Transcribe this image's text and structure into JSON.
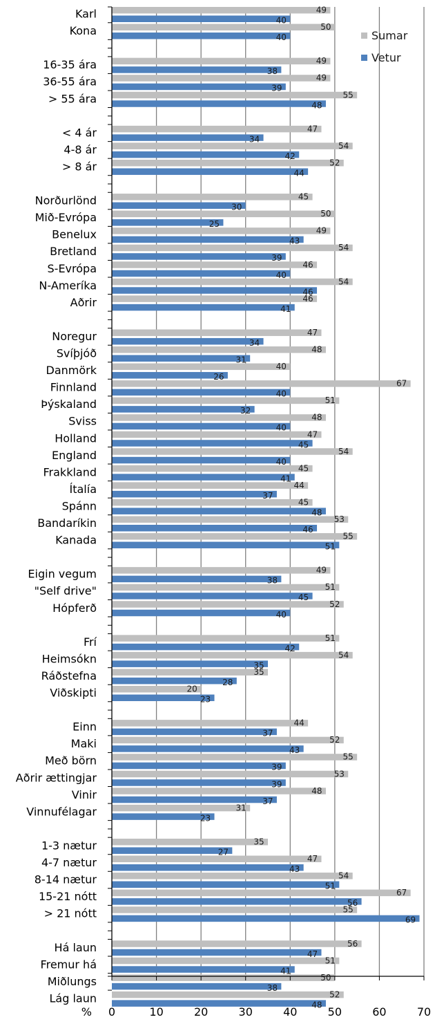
{
  "chart_data": {
    "type": "bar",
    "orientation": "horizontal",
    "xlabel": "%",
    "xlim": [
      0,
      70
    ],
    "xticks": [
      "0",
      "10",
      "20",
      "30",
      "40",
      "50",
      "60",
      "70"
    ],
    "grid": true,
    "legend_position": "top-right",
    "categories": [
      "Karl",
      "Kona",
      "16-35 ára",
      "36-55 ára",
      "> 55 ára",
      "< 4 ár",
      "4-8 ár",
      "> 8 ár",
      "Norðurlönd",
      "Mið-Evrópa",
      "Benelux",
      "Bretland",
      "S-Evrópa",
      "N-Ameríka",
      "Aðrir",
      "Noregur",
      "Svíþjóð",
      "Danmörk",
      "Finnland",
      "Þýskaland",
      "Sviss",
      "Holland",
      "England",
      "Frakkland",
      "Ítalía",
      "Spánn",
      "Bandaríkin",
      "Kanada",
      "Eigin vegum",
      "\"Self drive\"",
      "Hópferð",
      "Frí",
      "Heimsókn",
      "Ráðstefna",
      "Viðskipti",
      "Einn",
      "Maki",
      "Með börn",
      "Aðrir ættingjar",
      "Vinir",
      "Vinnufélagar",
      "1-3 nætur",
      "4-7 nætur",
      "8-14 nætur",
      "15-21 nótt",
      "> 21 nótt",
      "Há laun",
      "Fremur há",
      "Miðlungs",
      "Lág laun"
    ],
    "group_sizes": [
      2,
      3,
      3,
      7,
      13,
      3,
      4,
      6,
      5,
      4
    ],
    "series": [
      {
        "name": "Sumar",
        "color": "#bfbfbf",
        "values": [
          49,
          50,
          49,
          49,
          55,
          47,
          54,
          52,
          45,
          50,
          49,
          54,
          46,
          54,
          46,
          47,
          48,
          40,
          67,
          51,
          48,
          47,
          54,
          45,
          44,
          45,
          53,
          55,
          49,
          51,
          52,
          51,
          54,
          35,
          20,
          44,
          52,
          55,
          53,
          48,
          31,
          35,
          47,
          54,
          67,
          55,
          56,
          51,
          50,
          52
        ]
      },
      {
        "name": "Vetur",
        "color": "#4f81bd",
        "values": [
          40,
          40,
          38,
          39,
          48,
          34,
          42,
          44,
          30,
          25,
          43,
          39,
          40,
          46,
          41,
          34,
          31,
          26,
          40,
          32,
          40,
          45,
          40,
          41,
          37,
          48,
          46,
          51,
          38,
          45,
          40,
          42,
          35,
          28,
          23,
          37,
          43,
          39,
          39,
          37,
          23,
          27,
          43,
          51,
          56,
          69,
          47,
          41,
          38,
          48
        ]
      }
    ]
  }
}
